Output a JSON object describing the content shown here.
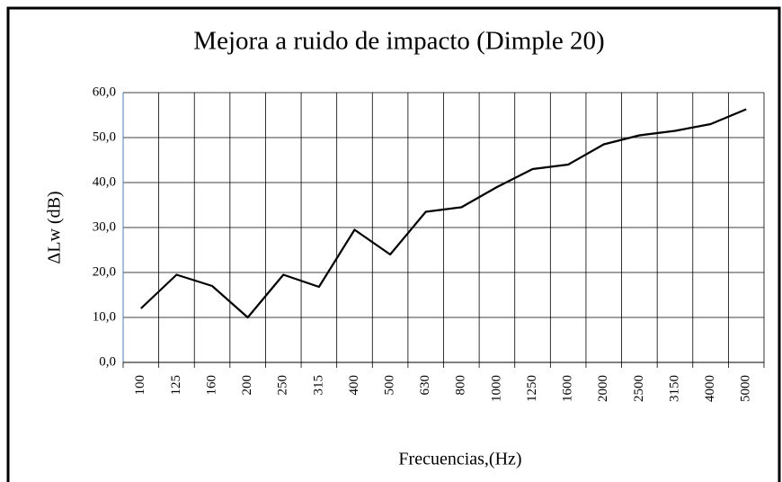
{
  "chart_data": {
    "type": "line",
    "title": "Mejora a ruido de impacto (Dimple 20)",
    "x_label": "Frecuencias,(Hz)",
    "y_label": "ΔLw (dB)",
    "categories": [
      "100",
      "125",
      "160",
      "200",
      "250",
      "315",
      "400",
      "500",
      "630",
      "800",
      "1000",
      "1250",
      "1600",
      "2000",
      "2500",
      "3150",
      "4000",
      "5000"
    ],
    "values": [
      12,
      19.5,
      17,
      10,
      19.5,
      16.8,
      29.5,
      24,
      33.5,
      34.5,
      39,
      43,
      44,
      48.5,
      50.5,
      51.5,
      53,
      56.3
    ],
    "color": "#000000",
    "ylim": [
      0,
      60
    ],
    "yticks": [
      {
        "value": 0,
        "label": "0,0"
      },
      {
        "value": 10,
        "label": "10,0"
      },
      {
        "value": 20,
        "label": "20,0"
      },
      {
        "value": 30,
        "label": "30,0"
      },
      {
        "value": 40,
        "label": "40,0"
      },
      {
        "value": 50,
        "label": "50,0"
      },
      {
        "value": 60,
        "label": "60,0"
      }
    ],
    "grid": true
  }
}
